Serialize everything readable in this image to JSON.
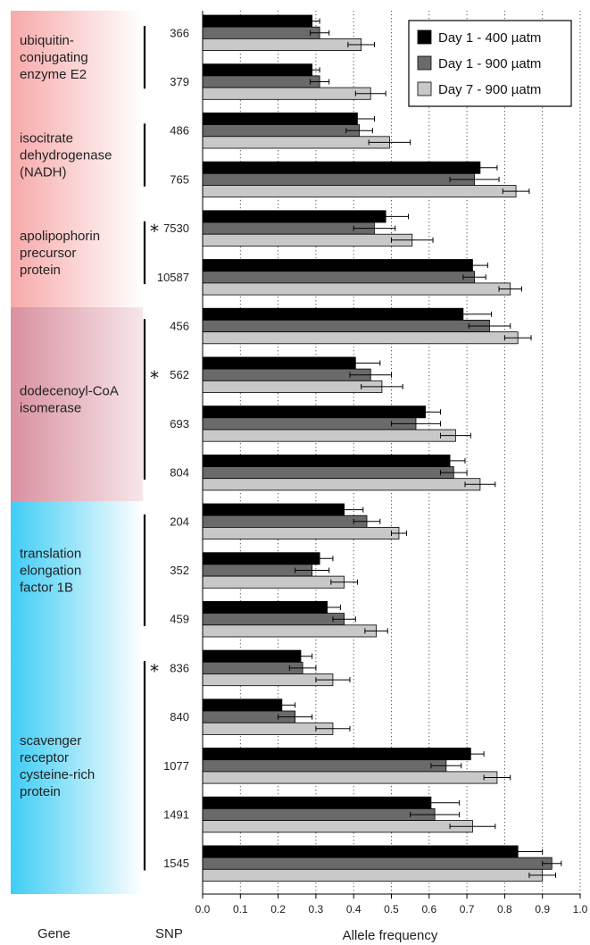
{
  "chart_data": {
    "type": "bar",
    "orientation": "horizontal",
    "title": "",
    "xlabel": "Allele frequency",
    "xlim": [
      0,
      1
    ],
    "xticks": [
      "0.0",
      "0.1",
      "0.2",
      "0.3",
      "0.4",
      "0.5",
      "0.6",
      "0.7",
      "0.8",
      "0.9",
      "1.0"
    ],
    "grid": "vertical dotted",
    "legend_position": "top-right",
    "column_headers": {
      "gene": "Gene",
      "snp": "SNP"
    },
    "series": [
      {
        "name": "Day 1 - 400 µatm",
        "color": "#000000"
      },
      {
        "name": "Day 1 - 900 µatm",
        "color": "#6a6a6a"
      },
      {
        "name": "Day 7 - 900 µatm",
        "color": "#c8c8c8"
      }
    ],
    "genes": [
      {
        "label": "ubiquitin-\nconjugating\nenzyme E2",
        "bg": "#f7a9a9",
        "snps": [
          {
            "snp": "366",
            "marked": false,
            "values": [
              0.29,
              0.31,
              0.42
            ],
            "errors": [
              0.02,
              0.025,
              0.035
            ]
          },
          {
            "snp": "379",
            "marked": false,
            "values": [
              0.29,
              0.31,
              0.445
            ],
            "errors": [
              0.02,
              0.025,
              0.04
            ]
          }
        ]
      },
      {
        "label": "isocitrate\ndehydrogenase\n(NADH)",
        "bg": "#f7a9a9",
        "snps": [
          {
            "snp": "486",
            "marked": false,
            "values": [
              0.41,
              0.415,
              0.495
            ],
            "errors": [
              0.045,
              0.035,
              0.055
            ]
          },
          {
            "snp": "765",
            "marked": false,
            "values": [
              0.735,
              0.72,
              0.83
            ],
            "errors": [
              0.045,
              0.065,
              0.035
            ]
          }
        ]
      },
      {
        "label": "apolipophorin\nprecursor\nprotein",
        "bg": "#f7a9a9",
        "snps": [
          {
            "snp": "7530",
            "marked": true,
            "values": [
              0.485,
              0.455,
              0.555
            ],
            "errors": [
              0.06,
              0.055,
              0.055
            ]
          },
          {
            "snp": "10587",
            "marked": false,
            "values": [
              0.715,
              0.72,
              0.815
            ],
            "errors": [
              0.04,
              0.03,
              0.03
            ]
          }
        ]
      },
      {
        "label": "dodecenoyl-CoA\nisomerase",
        "bg": "#d9909f",
        "snps": [
          {
            "snp": "456",
            "marked": false,
            "values": [
              0.69,
              0.76,
              0.835
            ],
            "errors": [
              0.075,
              0.055,
              0.035
            ]
          },
          {
            "snp": "562",
            "marked": true,
            "values": [
              0.405,
              0.445,
              0.475
            ],
            "errors": [
              0.065,
              0.055,
              0.055
            ]
          },
          {
            "snp": "693",
            "marked": false,
            "values": [
              0.59,
              0.565,
              0.67
            ],
            "errors": [
              0.04,
              0.065,
              0.04
            ]
          },
          {
            "snp": "804",
            "marked": false,
            "values": [
              0.655,
              0.665,
              0.735
            ],
            "errors": [
              0.04,
              0.035,
              0.04
            ]
          }
        ]
      },
      {
        "label": "translation\nelongation\nfactor 1B",
        "bg": "#3fcdf5",
        "snps": [
          {
            "snp": "204",
            "marked": false,
            "values": [
              0.375,
              0.435,
              0.52
            ],
            "errors": [
              0.05,
              0.035,
              0.02
            ]
          },
          {
            "snp": "352",
            "marked": false,
            "values": [
              0.31,
              0.29,
              0.375
            ],
            "errors": [
              0.035,
              0.045,
              0.035
            ]
          },
          {
            "snp": "459",
            "marked": false,
            "values": [
              0.33,
              0.375,
              0.46
            ],
            "errors": [
              0.035,
              0.03,
              0.03
            ]
          }
        ]
      },
      {
        "label": "scavenger\nreceptor\ncysteine-rich\nprotein",
        "bg": "#3fcdf5",
        "snps": [
          {
            "snp": "836",
            "marked": true,
            "values": [
              0.26,
              0.265,
              0.345
            ],
            "errors": [
              0.03,
              0.035,
              0.045
            ]
          },
          {
            "snp": "840",
            "marked": false,
            "values": [
              0.21,
              0.245,
              0.345
            ],
            "errors": [
              0.035,
              0.045,
              0.045
            ]
          },
          {
            "snp": "1077",
            "marked": false,
            "values": [
              0.71,
              0.645,
              0.78
            ],
            "errors": [
              0.035,
              0.04,
              0.035
            ]
          },
          {
            "snp": "1491",
            "marked": false,
            "values": [
              0.605,
              0.615,
              0.715
            ],
            "errors": [
              0.075,
              0.065,
              0.06
            ]
          },
          {
            "snp": "1545",
            "marked": false,
            "values": [
              0.835,
              0.925,
              0.9
            ],
            "errors": [
              0.065,
              0.025,
              0.035
            ]
          }
        ]
      }
    ]
  }
}
